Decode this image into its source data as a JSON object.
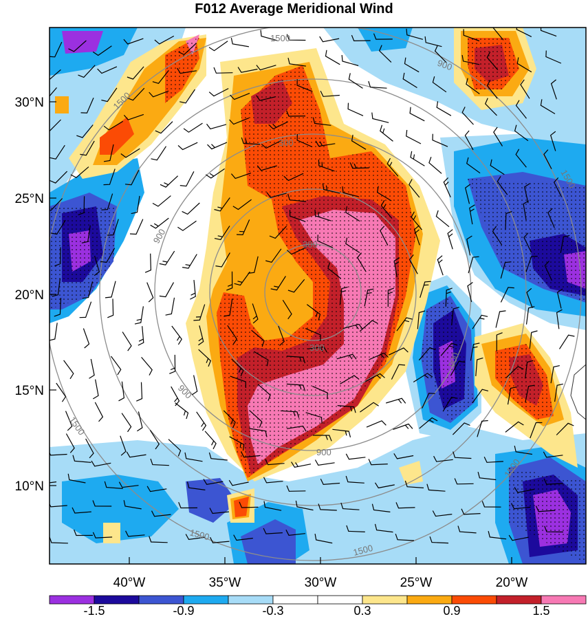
{
  "title": "F012 Average Meridional Wind",
  "map": {
    "lat_ticks": [
      "30°N",
      "25°N",
      "20°N",
      "15°N",
      "10°N"
    ],
    "lon_ticks": [
      "40°W",
      "35°W",
      "30°W",
      "25°W",
      "20°W"
    ],
    "contour_labels": [
      "1500",
      "1500",
      "1500",
      "1500",
      "900",
      "900",
      "900",
      "900",
      "300",
      "300",
      "300",
      "1500",
      "1500",
      "1500",
      "900"
    ],
    "contour_color": "#8c8c8c"
  },
  "colorbar": {
    "labels": [
      "-1.5",
      "-0.9",
      "-0.3",
      "0.3",
      "0.9",
      "1.5"
    ],
    "colors": [
      "#9b30e0",
      "#1c0a9c",
      "#3c55d2",
      "#1eaaf0",
      "#a7dcf7",
      "#ffffff",
      "#ffffff",
      "#fde68c",
      "#fbaa12",
      "#fb4b05",
      "#c3202a",
      "#f779b4"
    ]
  }
}
